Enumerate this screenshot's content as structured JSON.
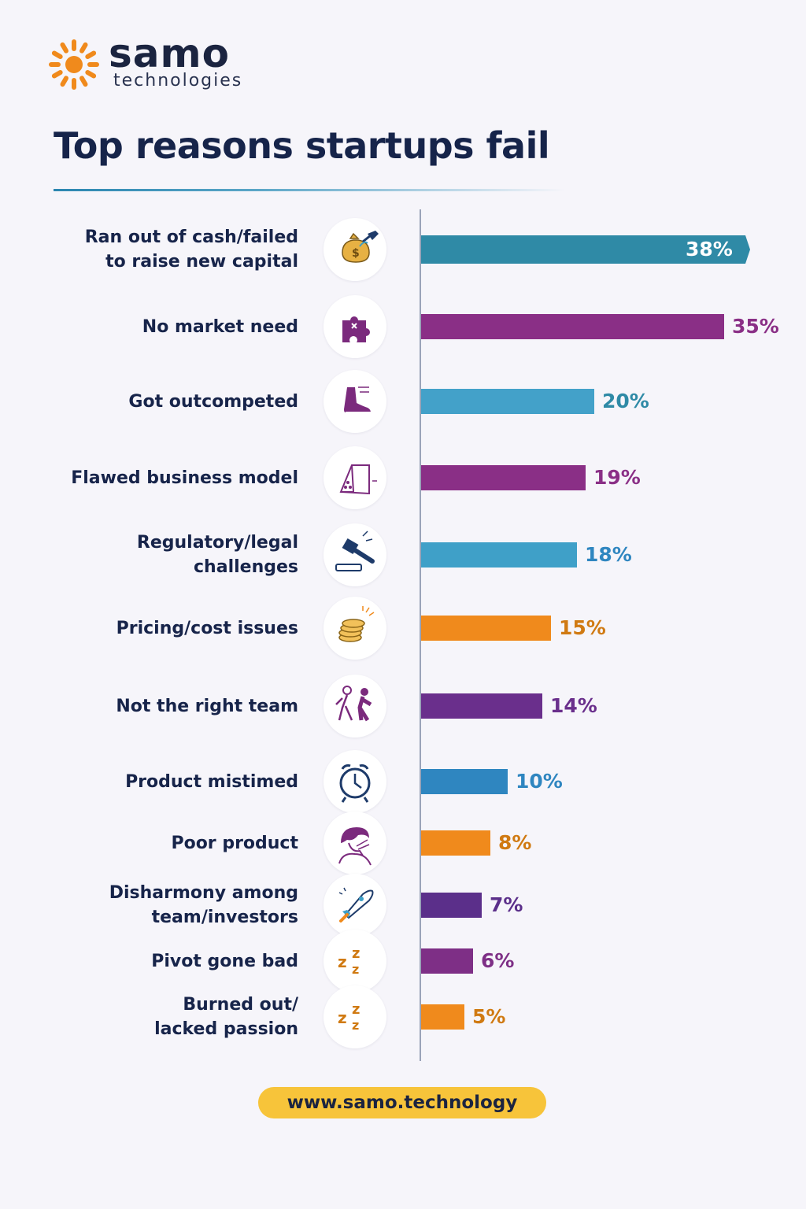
{
  "brand": {
    "name": "samo",
    "tagline": "technologies",
    "sun_color": "#f08a1c"
  },
  "footer": {
    "url": "www.samo.technology",
    "color": "#f7c43a"
  },
  "chart_data": {
    "type": "bar",
    "orientation": "horizontal",
    "title": "Top reasons startups fail",
    "xlabel": "",
    "ylabel": "",
    "xlim": [
      0,
      38
    ],
    "grid": false,
    "categories": [
      "Ran out of cash/failed\nto raise new capital",
      "No market need",
      "Got outcompeted",
      "Flawed business model",
      "Regulatory/legal\nchallenges",
      "Pricing/cost issues",
      "Not the right team",
      "Product mistimed",
      "Poor product",
      "Disharmony among\nteam/investors",
      "Pivot gone bad",
      "Burned out/\nlacked passion"
    ],
    "values": [
      38,
      35,
      20,
      19,
      18,
      15,
      14,
      10,
      8,
      7,
      6,
      5
    ],
    "data_labels": [
      "38%",
      "35%",
      "20%",
      "19%",
      "18%",
      "15%",
      "14%",
      "10%",
      "8%",
      "7%",
      "6%",
      "5%"
    ],
    "colors": [
      "#2f8aa6",
      "#8a2f86",
      "#43a1c9",
      "#8a2f86",
      "#3fa0c8",
      "#f08a1c",
      "#6a2f8c",
      "#2f86c0",
      "#f08a1c",
      "#5b2f8a",
      "#7e2f86",
      "#f08a1c"
    ],
    "icons": [
      "money-bag-icon",
      "puzzle-piece-icon",
      "running-shoe-icon",
      "house-of-cards-icon",
      "gavel-icon",
      "coin-stack-icon",
      "team-people-icon",
      "alarm-clock-icon",
      "frustrated-person-icon",
      "rocket-icon",
      "sleep-zz-icon",
      "sleep-zz-icon"
    ]
  }
}
